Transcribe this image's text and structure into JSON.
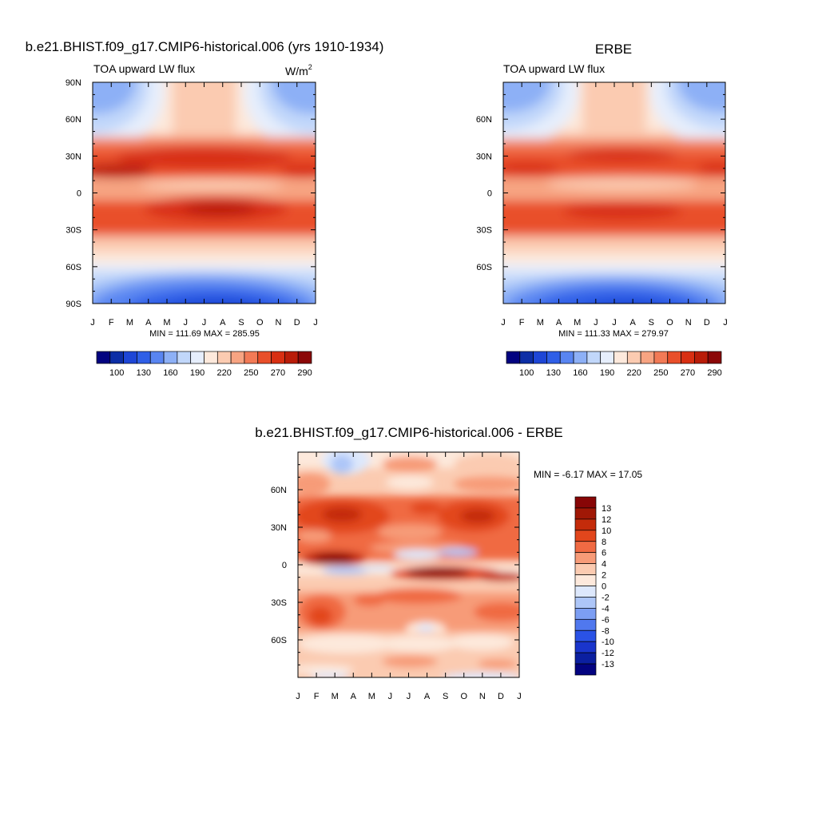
{
  "chart_data": [
    {
      "type": "heatmap",
      "title": "b.e21.BHIST.f09_g17.CMIP6-historical.006 (yrs 1910-1934)",
      "subtitle_left": "TOA upward LW flux",
      "units": "W/m",
      "units_exp": "2",
      "x": [
        "J",
        "F",
        "M",
        "A",
        "M",
        "J",
        "J",
        "A",
        "S",
        "O",
        "N",
        "D",
        "J"
      ],
      "ytick_labels": [
        "90N",
        "60N",
        "30N",
        "0",
        "30S",
        "60S",
        "90S"
      ],
      "ylim": [
        -90,
        90
      ],
      "stats": "MIN = 111.69 MAX = 285.95",
      "colorbar_labels": [
        "100",
        "130",
        "160",
        "190",
        "220",
        "250",
        "270",
        "290"
      ],
      "colorbar_orientation": "horizontal"
    },
    {
      "type": "heatmap",
      "title": "ERBE",
      "subtitle_left": "TOA upward LW flux",
      "x": [
        "J",
        "F",
        "M",
        "A",
        "M",
        "J",
        "J",
        "A",
        "S",
        "O",
        "N",
        "D",
        "J"
      ],
      "ytick_labels": [
        "60N",
        "30N",
        "0",
        "30S",
        "60S"
      ],
      "ylim": [
        -90,
        90
      ],
      "stats": "MIN = 111.33 MAX = 279.97",
      "colorbar_labels": [
        "100",
        "130",
        "160",
        "190",
        "220",
        "250",
        "270",
        "290"
      ],
      "colorbar_orientation": "horizontal"
    },
    {
      "type": "heatmap",
      "title": "b.e21.BHIST.f09_g17.CMIP6-historical.006 - ERBE",
      "x": [
        "J",
        "F",
        "M",
        "A",
        "M",
        "J",
        "J",
        "A",
        "S",
        "O",
        "N",
        "D",
        "J"
      ],
      "ytick_labels": [
        "60N",
        "30N",
        "0",
        "30S",
        "60S"
      ],
      "ylim": [
        -90,
        90
      ],
      "stats": "MIN =  -6.17 MAX =  17.05",
      "colorbar_labels": [
        "13",
        "12",
        "10",
        "8",
        "6",
        "4",
        "2",
        "0",
        "-2",
        "-4",
        "-6",
        "-8",
        "-10",
        "-12",
        "-13"
      ],
      "colorbar_orientation": "vertical"
    }
  ],
  "colors": {
    "abs_palette": [
      "#030380",
      "#0d2ea6",
      "#1e46d6",
      "#2f5fe7",
      "#5985f1",
      "#8db0f6",
      "#c1d7fa",
      "#e6eefc",
      "#fde9dc",
      "#fbcbb1",
      "#f7a482",
      "#f27a56",
      "#e94f2a",
      "#d82f12",
      "#b91c08",
      "#8b0707"
    ],
    "diff_palette": [
      "#030380",
      "#0b1fa0",
      "#1a35cc",
      "#2a52e6",
      "#5078ee",
      "#7c9ef3",
      "#adc6f8",
      "#dde8fc",
      "#fde9dc",
      "#fbcbb1",
      "#f79b78",
      "#f06a43",
      "#e2461c",
      "#c42b0a",
      "#a01806",
      "#870606"
    ]
  }
}
